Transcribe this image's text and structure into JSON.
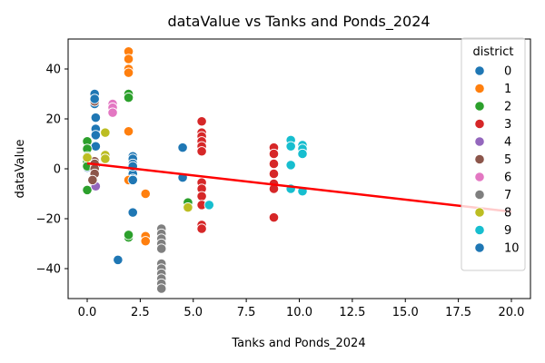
{
  "chart_data": {
    "type": "scatter",
    "title": "dataValue vs Tanks and Ponds_2024",
    "xlabel": "Tanks and Ponds_2024",
    "ylabel": "dataValue",
    "xlim": [
      -0.9,
      20.9
    ],
    "ylim": [
      -52,
      52
    ],
    "xticks": [
      0.0,
      2.5,
      5.0,
      7.5,
      10.0,
      12.5,
      15.0,
      17.5,
      20.0
    ],
    "xtick_labels": [
      "0.0",
      "2.5",
      "5.0",
      "7.5",
      "10.0",
      "12.5",
      "15.0",
      "17.5",
      "20.0"
    ],
    "yticks": [
      -40,
      -20,
      0,
      20,
      40
    ],
    "ytick_labels": [
      "−40",
      "−20",
      "0",
      "20",
      "40"
    ],
    "grid": false,
    "legend": {
      "title": "district",
      "placement": "top-right",
      "entries": [
        "0",
        "1",
        "2",
        "3",
        "4",
        "5",
        "6",
        "7",
        "8",
        "9",
        "10"
      ]
    },
    "palette": [
      "#1f77b4",
      "#ff7f0e",
      "#2ca02c",
      "#d62728",
      "#9467bd",
      "#8c564b",
      "#e377c2",
      "#7f7f7f",
      "#bcbd22",
      "#17becf",
      "#1f77b4"
    ],
    "trend_line": {
      "color": "#ff0000",
      "x": [
        0,
        20
      ],
      "y": [
        2.2,
        -17.2
      ]
    },
    "series": [
      {
        "name": "0",
        "points": [
          [
            0.35,
            26
          ],
          [
            0.35,
            28
          ],
          [
            0.35,
            30
          ],
          [
            0.4,
            20.5
          ],
          [
            0.4,
            16
          ],
          [
            0.4,
            13.5
          ],
          [
            0.4,
            9
          ],
          [
            0.4,
            1.5
          ],
          [
            0.0,
            0.5
          ],
          [
            2.15,
            5
          ],
          [
            2.15,
            4
          ],
          [
            2.15,
            2
          ],
          [
            2.15,
            0
          ],
          [
            2.15,
            -2
          ],
          [
            2.15,
            -4
          ],
          [
            4.5,
            8.5
          ],
          [
            4.5,
            -3.5
          ]
        ]
      },
      {
        "name": "1",
        "points": [
          [
            1.95,
            47
          ],
          [
            1.95,
            44
          ],
          [
            1.95,
            40
          ],
          [
            1.95,
            38.5
          ],
          [
            1.95,
            15
          ],
          [
            1.95,
            -4.5
          ],
          [
            2.75,
            -10
          ],
          [
            2.75,
            -27
          ],
          [
            2.75,
            -29
          ]
        ]
      },
      {
        "name": "2",
        "points": [
          [
            0.0,
            11
          ],
          [
            0.0,
            8
          ],
          [
            0.0,
            5
          ],
          [
            0.0,
            3
          ],
          [
            0.0,
            1
          ],
          [
            0.0,
            -8.5
          ],
          [
            1.95,
            30
          ],
          [
            1.95,
            28.5
          ],
          [
            1.95,
            -27.5
          ],
          [
            1.95,
            -26.5
          ],
          [
            4.75,
            -13.5
          ]
        ]
      },
      {
        "name": "3",
        "points": [
          [
            5.4,
            19
          ],
          [
            5.4,
            14.5
          ],
          [
            5.4,
            13
          ],
          [
            5.4,
            11
          ],
          [
            5.4,
            9
          ],
          [
            5.4,
            7
          ],
          [
            5.4,
            -5.5
          ],
          [
            5.4,
            -8
          ],
          [
            5.4,
            -11
          ],
          [
            5.4,
            -14.5
          ],
          [
            5.4,
            -22.5
          ],
          [
            5.4,
            -24
          ],
          [
            8.8,
            8.5
          ],
          [
            8.8,
            6
          ],
          [
            8.8,
            2
          ],
          [
            8.8,
            -2
          ],
          [
            8.8,
            -6
          ],
          [
            8.8,
            -8
          ],
          [
            8.8,
            -19.5
          ]
        ]
      },
      {
        "name": "4",
        "points": [
          [
            0.4,
            -7
          ]
        ]
      },
      {
        "name": "5",
        "points": [
          [
            0.35,
            3
          ],
          [
            0.35,
            2
          ],
          [
            0.35,
            0
          ],
          [
            0.35,
            -2
          ],
          [
            0.25,
            -4.5
          ],
          [
            0.35,
            27
          ]
        ]
      },
      {
        "name": "6",
        "points": [
          [
            1.2,
            26
          ],
          [
            1.2,
            24.5
          ],
          [
            1.2,
            22.5
          ]
        ]
      },
      {
        "name": "7",
        "points": [
          [
            3.5,
            -24
          ],
          [
            3.5,
            -26
          ],
          [
            3.5,
            -28
          ],
          [
            3.5,
            -30
          ],
          [
            3.5,
            -32
          ],
          [
            3.5,
            -38
          ],
          [
            3.5,
            -40
          ],
          [
            3.5,
            -42
          ],
          [
            3.5,
            -44
          ],
          [
            3.5,
            -46
          ],
          [
            3.5,
            -48
          ]
        ]
      },
      {
        "name": "8",
        "points": [
          [
            0.85,
            14.5
          ],
          [
            0.85,
            5.5
          ],
          [
            0.85,
            4
          ],
          [
            0.0,
            4.5
          ],
          [
            4.75,
            -15.5
          ]
        ]
      },
      {
        "name": "9",
        "points": [
          [
            9.6,
            11.5
          ],
          [
            9.6,
            9
          ],
          [
            9.6,
            1.5
          ],
          [
            9.6,
            -8
          ],
          [
            10.15,
            9.5
          ],
          [
            10.15,
            8
          ],
          [
            10.15,
            6
          ],
          [
            10.15,
            -9
          ],
          [
            5.75,
            -14.5
          ]
        ]
      },
      {
        "name": "10",
        "points": [
          [
            0.35,
            28
          ],
          [
            1.45,
            -36.5
          ],
          [
            2.15,
            1
          ],
          [
            2.15,
            -17.5
          ],
          [
            2.15,
            -4.5
          ]
        ]
      }
    ]
  }
}
